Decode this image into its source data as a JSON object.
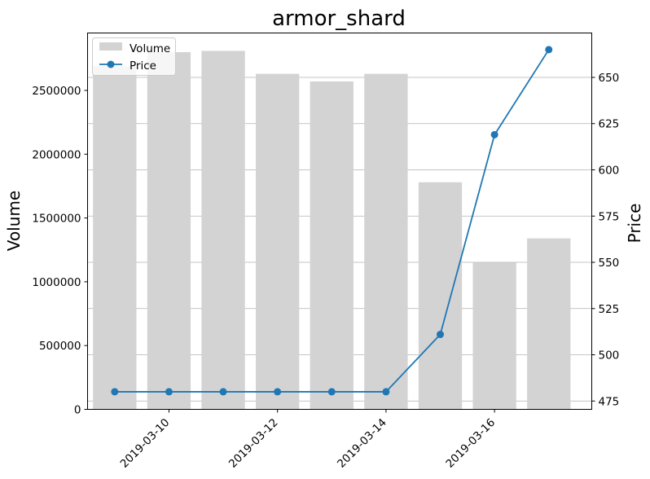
{
  "chart_data": {
    "type": "bar+line",
    "title": "armor_shard",
    "xlabel": "",
    "dates": [
      "2019-03-09",
      "2019-03-10",
      "2019-03-11",
      "2019-03-12",
      "2019-03-13",
      "2019-03-14",
      "2019-03-15",
      "2019-03-16",
      "2019-03-17"
    ],
    "x_ticks": [
      "2019-03-10",
      "2019-03-12",
      "2019-03-14",
      "2019-03-16"
    ],
    "x_range": [
      "2019-03-08T12:00",
      "2019-03-17T19:00"
    ],
    "left_axis": {
      "label": "Volume",
      "ylim": [
        0,
        2950000
      ],
      "ticks": [
        0,
        500000,
        1000000,
        1500000,
        2000000,
        2500000
      ],
      "tick_labels": [
        "0",
        "500000",
        "1000000",
        "1500000",
        "2000000",
        "2500000"
      ]
    },
    "right_axis": {
      "label": "Price",
      "ylim": [
        470.5,
        674
      ],
      "ticks": [
        475,
        500,
        525,
        550,
        575,
        600,
        625,
        650
      ],
      "tick_labels": [
        "475",
        "500",
        "525",
        "550",
        "575",
        "600",
        "625",
        "650"
      ]
    },
    "series": [
      {
        "name": "Volume",
        "kind": "bar",
        "axis": "left",
        "color": "#d3d3d3",
        "values": [
          2690000,
          2800000,
          2810000,
          2630000,
          2570000,
          2630000,
          1780000,
          1150000,
          1340000
        ]
      },
      {
        "name": "Price",
        "kind": "line",
        "axis": "right",
        "color": "#1f77b4",
        "marker": "circle",
        "values": [
          480,
          480,
          480,
          480,
          480,
          480,
          511,
          619,
          665
        ]
      }
    ],
    "grid": "horizontal lines on right (Price) axis ticks",
    "legend": "upper-left"
  }
}
